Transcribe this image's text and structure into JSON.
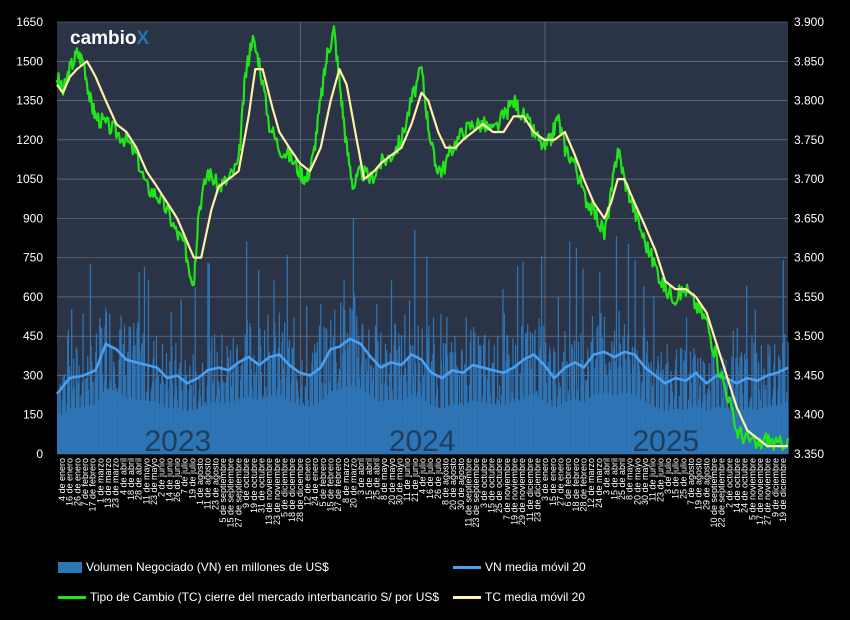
{
  "brand": {
    "name": "cambio",
    "mark": "X",
    "mark_color": "#1f77b4"
  },
  "colors": {
    "plot_background": "#2b3346",
    "grid": "#7a8294",
    "vn_bars": "#2e75b6",
    "vn_ma": "#4a9ff0",
    "tc": "#22e41a",
    "tc_ma": "#fff2a8"
  },
  "legend": {
    "vn": "Volumen Negociado (VN) en millones de US$",
    "vn_ma": "VN media móvil 20",
    "tc": "Tipo de Cambio (TC) cierre del mercado interbancario S/ por US$",
    "tc_ma": "TC media móvil 20"
  },
  "chart_data": {
    "type": "bar+line",
    "grid": true,
    "legend_position": "bottom",
    "y_left": {
      "min": 0,
      "max": 1650,
      "ticks": [
        "0",
        "150",
        "300",
        "450",
        "600",
        "750",
        "900",
        "1050",
        "1200",
        "1350",
        "1500",
        "1650"
      ]
    },
    "y_right": {
      "min": 3.35,
      "max": 3.9,
      "ticks": [
        "3.350",
        "3.400",
        "3.450",
        "3.500",
        "3.550",
        "3.600",
        "3.650",
        "3.700",
        "3.750",
        "3.800",
        "3.850",
        "3.900"
      ]
    },
    "x_range": [
      "2023-01-01",
      "2025-12-31"
    ],
    "year_labels": [
      {
        "text": "2023",
        "date": "2023-07-01"
      },
      {
        "text": "2024",
        "date": "2024-07-01"
      },
      {
        "text": "2025",
        "date": "2025-07-01"
      }
    ],
    "x_tick_labels": [
      "4 de enero",
      "16 de enero",
      "26 de enero",
      "7 de febrero",
      "17 de febrero",
      "1 de marzo",
      "13 de marzo",
      "23 de marzo",
      "4 de abril",
      "18 de abril",
      "28 de abril",
      "11 de mayo",
      "23 de mayo",
      "2 de junio",
      "14 de junio",
      "26 de junio",
      "7 de julio",
      "19 de julio",
      "1 de agosto",
      "11 de agosto",
      "23 de agosto",
      "5 de septiembre",
      "15 de septiembre",
      "27 de septiembre",
      "9 de octubre",
      "19 de octubre",
      "31 de octubre",
      "13 de noviembre",
      "23 de noviembre",
      "5 de diciembre",
      "18 de diciembre",
      "28 de diciembre",
      "12 de enero",
      "24 de enero",
      "5 de febrero",
      "15 de febrero",
      "27 de febrero",
      "8 de marzo",
      "20 de marzo",
      "3 de abril",
      "15 de abril",
      "25 de abril",
      "8 de mayo",
      "20 de mayo",
      "30 de mayo",
      "11 de junio",
      "21 de junio",
      "4 de julio",
      "16 de julio",
      "26 de julio",
      "8 de agosto",
      "20 de agosto",
      "30 de agosto",
      "11 de septiembre",
      "23 de septiembre",
      "3 de octubre",
      "15 de octubre",
      "25 de octubre",
      "7 de noviembre",
      "19 de noviembre",
      "29 de noviembre",
      "11 de diciembre",
      "23 de diciembre",
      "3 de enero",
      "15 de enero",
      "27 de enero",
      "6 de febrero",
      "18 de febrero",
      "28 de febrero",
      "12 de marzo",
      "24 de marzo",
      "3 de abril",
      "15 de abril",
      "25 de abril",
      "8 de mayo",
      "20 de mayo",
      "30 de mayo",
      "11 de junio",
      "23 de junio",
      "3 de julio",
      "15 de julio",
      "25 de julio",
      "7 de agosto",
      "19 de agosto",
      "29 de agosto",
      "10 de septiembre",
      "22 de septiembre",
      "2 de octubre",
      "14 de octubre",
      "24 de octubre",
      "5 de noviembre",
      "17 de noviembre",
      "27 de noviembre",
      "9 de diciembre",
      "19 de diciembre"
    ],
    "tc_series": [
      [
        "2023-01-01",
        3.83
      ],
      [
        "2023-01-10",
        3.81
      ],
      [
        "2023-01-20",
        3.84
      ],
      [
        "2023-01-31",
        3.86
      ],
      [
        "2023-02-10",
        3.85
      ],
      [
        "2023-02-20",
        3.8
      ],
      [
        "2023-02-28",
        3.78
      ],
      [
        "2023-03-15",
        3.77
      ],
      [
        "2023-03-31",
        3.76
      ],
      [
        "2023-04-15",
        3.75
      ],
      [
        "2023-04-30",
        3.73
      ],
      [
        "2023-05-15",
        3.69
      ],
      [
        "2023-05-31",
        3.68
      ],
      [
        "2023-06-15",
        3.66
      ],
      [
        "2023-06-30",
        3.63
      ],
      [
        "2023-07-10",
        3.62
      ],
      [
        "2023-07-20",
        3.58
      ],
      [
        "2023-07-25",
        3.57
      ],
      [
        "2023-08-01",
        3.66
      ],
      [
        "2023-08-15",
        3.71
      ],
      [
        "2023-08-31",
        3.69
      ],
      [
        "2023-09-15",
        3.7
      ],
      [
        "2023-09-30",
        3.72
      ],
      [
        "2023-10-10",
        3.83
      ],
      [
        "2023-10-20",
        3.88
      ],
      [
        "2023-10-31",
        3.85
      ],
      [
        "2023-11-15",
        3.77
      ],
      [
        "2023-11-30",
        3.74
      ],
      [
        "2023-12-15",
        3.73
      ],
      [
        "2023-12-31",
        3.71
      ],
      [
        "2024-01-10",
        3.7
      ],
      [
        "2024-01-20",
        3.73
      ],
      [
        "2024-01-31",
        3.8
      ],
      [
        "2024-02-10",
        3.86
      ],
      [
        "2024-02-20",
        3.89
      ],
      [
        "2024-03-01",
        3.81
      ],
      [
        "2024-03-10",
        3.74
      ],
      [
        "2024-03-20",
        3.69
      ],
      [
        "2024-03-31",
        3.71
      ],
      [
        "2024-04-15",
        3.7
      ],
      [
        "2024-04-30",
        3.72
      ],
      [
        "2024-05-15",
        3.73
      ],
      [
        "2024-05-31",
        3.75
      ],
      [
        "2024-06-15",
        3.8
      ],
      [
        "2024-06-30",
        3.84
      ],
      [
        "2024-07-10",
        3.77
      ],
      [
        "2024-07-20",
        3.72
      ],
      [
        "2024-07-31",
        3.71
      ],
      [
        "2024-08-15",
        3.74
      ],
      [
        "2024-08-31",
        3.76
      ],
      [
        "2024-09-15",
        3.77
      ],
      [
        "2024-09-30",
        3.77
      ],
      [
        "2024-10-15",
        3.76
      ],
      [
        "2024-10-31",
        3.78
      ],
      [
        "2024-11-15",
        3.8
      ],
      [
        "2024-11-30",
        3.78
      ],
      [
        "2024-12-15",
        3.76
      ],
      [
        "2024-12-31",
        3.74
      ],
      [
        "2025-01-10",
        3.75
      ],
      [
        "2025-01-20",
        3.78
      ],
      [
        "2025-01-31",
        3.74
      ],
      [
        "2025-02-15",
        3.72
      ],
      [
        "2025-02-28",
        3.68
      ],
      [
        "2025-03-15",
        3.66
      ],
      [
        "2025-03-31",
        3.63
      ],
      [
        "2025-04-10",
        3.68
      ],
      [
        "2025-04-20",
        3.74
      ],
      [
        "2025-04-30",
        3.7
      ],
      [
        "2025-05-15",
        3.66
      ],
      [
        "2025-05-31",
        3.62
      ],
      [
        "2025-06-15",
        3.59
      ],
      [
        "2025-06-30",
        3.56
      ],
      [
        "2025-07-15",
        3.55
      ],
      [
        "2025-07-31",
        3.56
      ],
      [
        "2025-08-15",
        3.54
      ],
      [
        "2025-08-31",
        3.52
      ],
      [
        "2025-09-15",
        3.47
      ],
      [
        "2025-09-30",
        3.43
      ],
      [
        "2025-10-15",
        3.38
      ],
      [
        "2025-10-31",
        3.37
      ],
      [
        "2025-11-15",
        3.36
      ],
      [
        "2025-11-30",
        3.37
      ],
      [
        "2025-12-15",
        3.36
      ],
      [
        "2025-12-31",
        3.37
      ]
    ],
    "tc_ma_series": [
      [
        "2023-01-01",
        3.82
      ],
      [
        "2023-01-10",
        3.81
      ],
      [
        "2023-01-20",
        3.83
      ],
      [
        "2023-01-31",
        3.84
      ],
      [
        "2023-02-15",
        3.85
      ],
      [
        "2023-02-28",
        3.83
      ],
      [
        "2023-03-15",
        3.8
      ],
      [
        "2023-03-31",
        3.77
      ],
      [
        "2023-04-15",
        3.76
      ],
      [
        "2023-04-30",
        3.74
      ],
      [
        "2023-05-15",
        3.71
      ],
      [
        "2023-05-31",
        3.69
      ],
      [
        "2023-06-15",
        3.67
      ],
      [
        "2023-06-30",
        3.65
      ],
      [
        "2023-07-15",
        3.62
      ],
      [
        "2023-07-25",
        3.6
      ],
      [
        "2023-08-05",
        3.6
      ],
      [
        "2023-08-20",
        3.66
      ],
      [
        "2023-08-31",
        3.69
      ],
      [
        "2023-09-15",
        3.7
      ],
      [
        "2023-09-30",
        3.71
      ],
      [
        "2023-10-15",
        3.78
      ],
      [
        "2023-10-25",
        3.84
      ],
      [
        "2023-11-05",
        3.84
      ],
      [
        "2023-11-20",
        3.79
      ],
      [
        "2023-11-30",
        3.76
      ],
      [
        "2023-12-15",
        3.74
      ],
      [
        "2023-12-31",
        3.72
      ],
      [
        "2024-01-15",
        3.71
      ],
      [
        "2024-01-31",
        3.74
      ],
      [
        "2024-02-15",
        3.8
      ],
      [
        "2024-02-28",
        3.84
      ],
      [
        "2024-03-10",
        3.82
      ],
      [
        "2024-03-25",
        3.75
      ],
      [
        "2024-04-05",
        3.7
      ],
      [
        "2024-04-20",
        3.71
      ],
      [
        "2024-04-30",
        3.72
      ],
      [
        "2024-05-15",
        3.73
      ],
      [
        "2024-05-31",
        3.74
      ],
      [
        "2024-06-15",
        3.77
      ],
      [
        "2024-06-30",
        3.81
      ],
      [
        "2024-07-10",
        3.8
      ],
      [
        "2024-07-25",
        3.76
      ],
      [
        "2024-08-05",
        3.74
      ],
      [
        "2024-08-20",
        3.74
      ],
      [
        "2024-08-31",
        3.75
      ],
      [
        "2024-09-15",
        3.76
      ],
      [
        "2024-09-30",
        3.77
      ],
      [
        "2024-10-15",
        3.76
      ],
      [
        "2024-10-31",
        3.76
      ],
      [
        "2024-11-15",
        3.78
      ],
      [
        "2024-11-30",
        3.78
      ],
      [
        "2024-12-15",
        3.76
      ],
      [
        "2024-12-31",
        3.75
      ],
      [
        "2025-01-15",
        3.75
      ],
      [
        "2025-01-31",
        3.76
      ],
      [
        "2025-02-15",
        3.73
      ],
      [
        "2025-02-28",
        3.7
      ],
      [
        "2025-03-15",
        3.67
      ],
      [
        "2025-03-31",
        3.65
      ],
      [
        "2025-04-10",
        3.67
      ],
      [
        "2025-04-20",
        3.7
      ],
      [
        "2025-04-30",
        3.7
      ],
      [
        "2025-05-15",
        3.67
      ],
      [
        "2025-05-31",
        3.64
      ],
      [
        "2025-06-15",
        3.61
      ],
      [
        "2025-06-30",
        3.57
      ],
      [
        "2025-07-15",
        3.56
      ],
      [
        "2025-07-31",
        3.56
      ],
      [
        "2025-08-15",
        3.55
      ],
      [
        "2025-08-31",
        3.53
      ],
      [
        "2025-09-15",
        3.49
      ],
      [
        "2025-09-30",
        3.45
      ],
      [
        "2025-10-15",
        3.41
      ],
      [
        "2025-10-31",
        3.38
      ],
      [
        "2025-11-15",
        3.37
      ],
      [
        "2025-11-30",
        3.36
      ],
      [
        "2025-12-15",
        3.36
      ],
      [
        "2025-12-31",
        3.36
      ]
    ],
    "vn_ma_series": [
      [
        "2023-01-01",
        230
      ],
      [
        "2023-01-20",
        290
      ],
      [
        "2023-02-10",
        300
      ],
      [
        "2023-02-28",
        320
      ],
      [
        "2023-03-15",
        420
      ],
      [
        "2023-03-31",
        400
      ],
      [
        "2023-04-15",
        360
      ],
      [
        "2023-04-30",
        350
      ],
      [
        "2023-05-15",
        340
      ],
      [
        "2023-05-31",
        330
      ],
      [
        "2023-06-15",
        290
      ],
      [
        "2023-06-30",
        300
      ],
      [
        "2023-07-15",
        270
      ],
      [
        "2023-07-31",
        290
      ],
      [
        "2023-08-15",
        320
      ],
      [
        "2023-08-31",
        330
      ],
      [
        "2023-09-15",
        320
      ],
      [
        "2023-09-30",
        350
      ],
      [
        "2023-10-15",
        370
      ],
      [
        "2023-10-31",
        340
      ],
      [
        "2023-11-15",
        370
      ],
      [
        "2023-11-30",
        380
      ],
      [
        "2023-12-15",
        340
      ],
      [
        "2023-12-31",
        310
      ],
      [
        "2024-01-15",
        300
      ],
      [
        "2024-01-31",
        330
      ],
      [
        "2024-02-15",
        400
      ],
      [
        "2024-02-28",
        410
      ],
      [
        "2024-03-15",
        440
      ],
      [
        "2024-03-31",
        420
      ],
      [
        "2024-04-15",
        370
      ],
      [
        "2024-04-30",
        330
      ],
      [
        "2024-05-15",
        350
      ],
      [
        "2024-05-31",
        340
      ],
      [
        "2024-06-15",
        380
      ],
      [
        "2024-06-30",
        360
      ],
      [
        "2024-07-15",
        310
      ],
      [
        "2024-07-31",
        290
      ],
      [
        "2024-08-15",
        320
      ],
      [
        "2024-08-31",
        310
      ],
      [
        "2024-09-15",
        340
      ],
      [
        "2024-09-30",
        330
      ],
      [
        "2024-10-15",
        320
      ],
      [
        "2024-10-31",
        310
      ],
      [
        "2024-11-15",
        330
      ],
      [
        "2024-11-30",
        360
      ],
      [
        "2024-12-15",
        380
      ],
      [
        "2024-12-31",
        340
      ],
      [
        "2025-01-15",
        290
      ],
      [
        "2025-01-31",
        330
      ],
      [
        "2025-02-15",
        350
      ],
      [
        "2025-02-28",
        330
      ],
      [
        "2025-03-15",
        380
      ],
      [
        "2025-03-31",
        390
      ],
      [
        "2025-04-15",
        370
      ],
      [
        "2025-04-30",
        390
      ],
      [
        "2025-05-15",
        380
      ],
      [
        "2025-05-31",
        330
      ],
      [
        "2025-06-15",
        300
      ],
      [
        "2025-06-30",
        270
      ],
      [
        "2025-07-15",
        290
      ],
      [
        "2025-07-31",
        280
      ],
      [
        "2025-08-15",
        310
      ],
      [
        "2025-08-31",
        270
      ],
      [
        "2025-09-15",
        300
      ],
      [
        "2025-09-30",
        290
      ],
      [
        "2025-10-15",
        270
      ],
      [
        "2025-10-31",
        290
      ],
      [
        "2025-11-15",
        280
      ],
      [
        "2025-11-30",
        300
      ],
      [
        "2025-12-15",
        310
      ],
      [
        "2025-12-31",
        330
      ]
    ]
  }
}
